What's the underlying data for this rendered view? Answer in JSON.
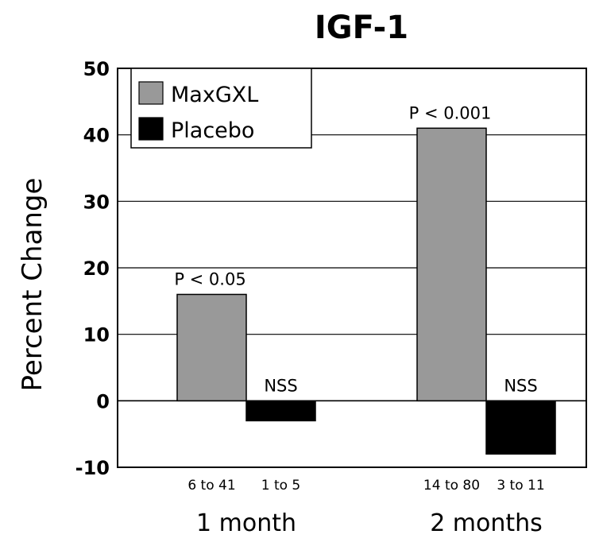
{
  "chart_data": {
    "type": "bar",
    "title": "IGF-1",
    "xlabel": "",
    "ylabel": "Percent Change",
    "ylim": [
      -10,
      50
    ],
    "yticks": [
      -10,
      0,
      10,
      20,
      30,
      40,
      50
    ],
    "grid": true,
    "legend_position": "top-left",
    "categories": [
      "1 month",
      "2 months"
    ],
    "series": [
      {
        "name": "MaxGXL",
        "color": "#999999",
        "values": [
          16,
          41
        ],
        "ranges": [
          "6 to 41",
          "14 to 80"
        ],
        "annotations": [
          "P < 0.05",
          "P < 0.001"
        ]
      },
      {
        "name": "Placebo",
        "color": "#000000",
        "values": [
          -3,
          -8
        ],
        "ranges": [
          "1 to 5",
          "3 to 11"
        ],
        "annotations": [
          "NSS",
          "NSS"
        ]
      }
    ]
  }
}
